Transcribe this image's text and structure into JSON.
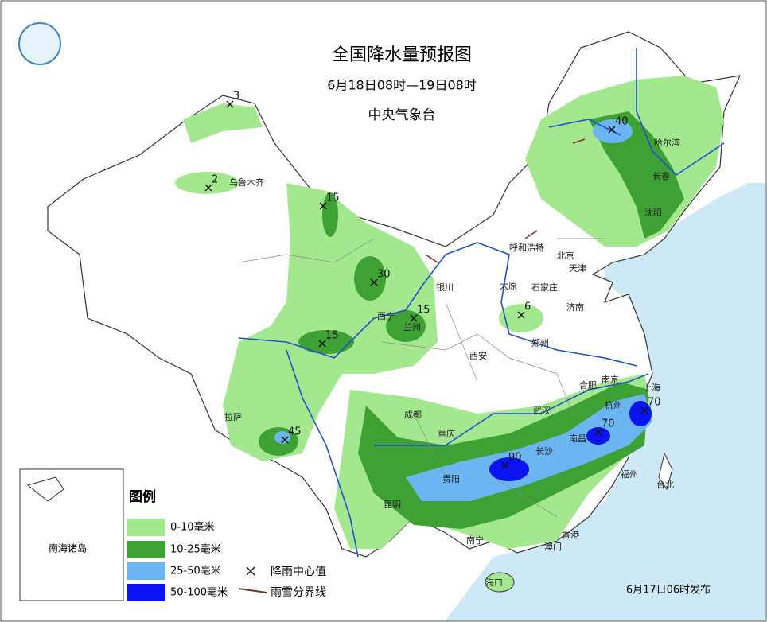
{
  "header": {
    "title": "全国降水量预报图",
    "period": "6月18日08时—19日08时",
    "issuer": "中央气象台"
  },
  "rain_centers": [
    3,
    2,
    15,
    30,
    15,
    15,
    6,
    45,
    90,
    70,
    70,
    40
  ],
  "cities": [
    "乌鲁木齐",
    "哈尔滨",
    "长春",
    "沈阳",
    "呼和浩特",
    "北京",
    "天津",
    "银川",
    "太原",
    "石家庄",
    "济南",
    "西宁",
    "兰州",
    "郑州",
    "西安",
    "合肥",
    "南京",
    "上海",
    "杭州",
    "武汉",
    "成都",
    "重庆",
    "拉萨",
    "南昌",
    "长沙",
    "贵阳",
    "福州",
    "昆明",
    "台北",
    "南宁",
    "香港",
    "澳门",
    "海口"
  ],
  "inset": {
    "label": "南海诸岛"
  },
  "legend": {
    "title": "图例",
    "items": [
      "0-10毫米",
      "10-25毫米",
      "25-50毫米",
      "50-100毫米"
    ],
    "center_symbol": "降雨中心值",
    "snow_line": "雨雪分界线"
  },
  "issued": "6月17日06时发布"
}
